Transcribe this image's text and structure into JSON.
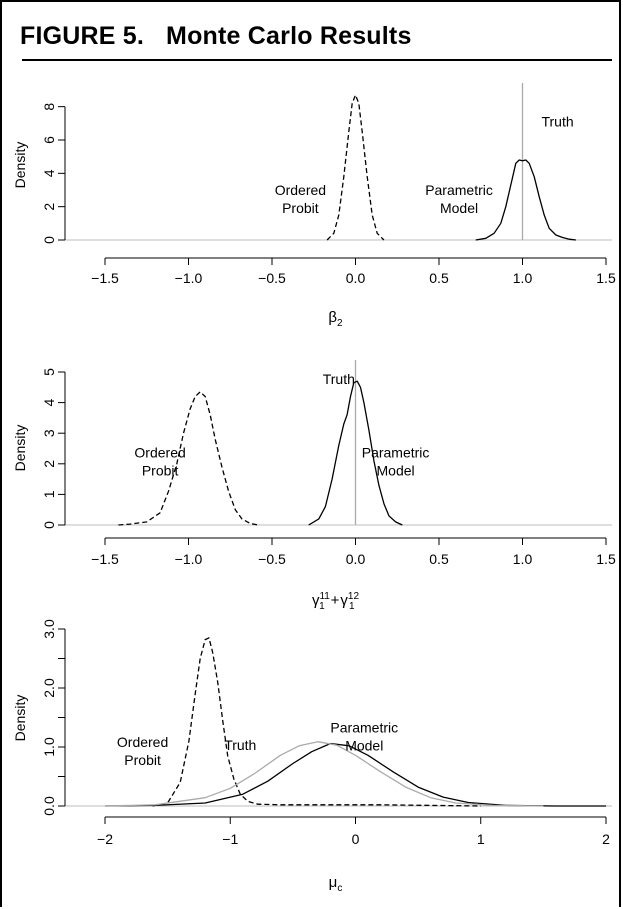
{
  "figure": {
    "label": "FIGURE 5.",
    "title": "Monte Carlo Results"
  },
  "chart_data": [
    {
      "type": "line",
      "xlabel": "β2",
      "xlabel_main": "β",
      "xlabel_sub": "2",
      "ylabel": "Density",
      "xlim": [
        -1.5,
        1.5
      ],
      "ylim": [
        0,
        8.7
      ],
      "xticks": [
        -1.5,
        -1.0,
        -0.5,
        0.0,
        0.5,
        1.0,
        1.5
      ],
      "xtick_labels": [
        "−1.5",
        "−1.0",
        "−0.5",
        "0.0",
        "0.5",
        "1.0",
        "1.5"
      ],
      "yticks": [
        0,
        2,
        4,
        6,
        8
      ],
      "ytick_labels": [
        "0",
        "2",
        "4",
        "6",
        "8"
      ],
      "truth_value": 1.0,
      "series": [
        {
          "style": "dashed",
          "color": "#000000",
          "x": [
            -0.17,
            -0.13,
            -0.1,
            -0.07,
            -0.04,
            -0.02,
            0.0,
            0.02,
            0.04,
            0.07,
            0.1,
            0.13,
            0.17
          ],
          "y": [
            0.0,
            0.4,
            1.5,
            3.8,
            6.5,
            8.2,
            8.7,
            8.2,
            6.5,
            3.8,
            1.5,
            0.4,
            0.0
          ]
        },
        {
          "style": "solid",
          "color": "#000000",
          "x": [
            0.72,
            0.78,
            0.83,
            0.87,
            0.9,
            0.93,
            0.96,
            0.98,
            1.0,
            1.02,
            1.04,
            1.07,
            1.1,
            1.13,
            1.16,
            1.2,
            1.24,
            1.28,
            1.32
          ],
          "y": [
            0.0,
            0.1,
            0.4,
            1.0,
            2.0,
            3.3,
            4.6,
            4.8,
            4.75,
            4.8,
            4.6,
            3.8,
            2.6,
            1.5,
            0.7,
            0.3,
            0.15,
            0.05,
            0.0
          ]
        }
      ],
      "annotations": [
        {
          "lines": [
            "Ordered",
            "Probit"
          ],
          "x": -0.33,
          "y": 2.7
        },
        {
          "lines": [
            "Parametric",
            "Model"
          ],
          "x": 0.62,
          "y": 2.7
        },
        {
          "lines": [
            "Truth"
          ],
          "x": 1.21,
          "y": 6.8
        }
      ]
    },
    {
      "type": "line",
      "xlabel": "γ1^11 + γ1^12",
      "xlabel_main": "γ",
      "xlabel_sub": "1",
      "xlabel_sup1": "11",
      "xlabel_plus": "+",
      "xlabel_sup2": "12",
      "ylabel": "Density",
      "xlim": [
        -1.5,
        1.5
      ],
      "ylim": [
        0,
        5
      ],
      "xticks": [
        -1.5,
        -1.0,
        -0.5,
        0.0,
        0.5,
        1.0,
        1.5
      ],
      "xtick_labels": [
        "−1.5",
        "−1.0",
        "−0.5",
        "0.0",
        "0.5",
        "1.0",
        "1.5"
      ],
      "yticks": [
        0,
        1,
        2,
        3,
        4,
        5
      ],
      "ytick_labels": [
        "0",
        "1",
        "2",
        "3",
        "4",
        "5"
      ],
      "truth_value": 0.0,
      "series": [
        {
          "style": "dashed",
          "color": "#000000",
          "x": [
            -1.42,
            -1.35,
            -1.25,
            -1.17,
            -1.12,
            -1.07,
            -1.03,
            -0.99,
            -0.96,
            -0.93,
            -0.9,
            -0.87,
            -0.84,
            -0.8,
            -0.76,
            -0.72,
            -0.68,
            -0.63,
            -0.58
          ],
          "y": [
            0.0,
            0.03,
            0.1,
            0.4,
            1.1,
            2.0,
            3.0,
            3.8,
            4.2,
            4.35,
            4.2,
            3.6,
            2.8,
            1.9,
            1.1,
            0.5,
            0.2,
            0.05,
            0.0
          ]
        },
        {
          "style": "solid",
          "color": "#000000",
          "x": [
            -0.28,
            -0.22,
            -0.18,
            -0.14,
            -0.1,
            -0.07,
            -0.05,
            -0.03,
            -0.01,
            0.01,
            0.03,
            0.05,
            0.08,
            0.11,
            0.14,
            0.17,
            0.2,
            0.24,
            0.28
          ],
          "y": [
            0.0,
            0.2,
            0.6,
            1.5,
            2.6,
            3.3,
            3.6,
            4.2,
            4.65,
            4.7,
            4.5,
            4.0,
            3.1,
            2.1,
            1.3,
            0.7,
            0.3,
            0.1,
            0.0
          ]
        }
      ],
      "annotations": [
        {
          "lines": [
            "Ordered",
            "Probit"
          ],
          "x": -1.17,
          "y": 2.2
        },
        {
          "lines": [
            "Parametric",
            "Model"
          ],
          "x": 0.24,
          "y": 2.2
        },
        {
          "lines": [
            "Truth"
          ],
          "x": -0.1,
          "y": 4.6
        }
      ]
    },
    {
      "type": "line",
      "xlabel": "μc",
      "xlabel_main": "μ",
      "xlabel_sub": "c",
      "ylabel": "Density",
      "xlim": [
        -2,
        2
      ],
      "ylim": [
        0,
        3.0
      ],
      "xticks": [
        -2,
        -1,
        0,
        1,
        2
      ],
      "xtick_labels": [
        "−2",
        "−1",
        "0",
        "1",
        "2"
      ],
      "yticks": [
        0.0,
        1.0,
        2.0,
        3.0
      ],
      "ytick_labels": [
        "0.0",
        "1.0",
        "2.0",
        "3.0"
      ],
      "yminor_ticks": [
        0.5,
        1.5,
        2.5
      ],
      "truth_value": null,
      "series": [
        {
          "style": "dashed",
          "color": "#000000",
          "x": [
            -1.62,
            -1.5,
            -1.4,
            -1.33,
            -1.28,
            -1.24,
            -1.2,
            -1.17,
            -1.14,
            -1.1,
            -1.06,
            -1.02,
            -0.97,
            -0.92,
            -0.86,
            -0.78,
            -0.6,
            -0.2,
            0.2,
            0.6,
            1.0
          ],
          "y": [
            0.0,
            0.05,
            0.4,
            1.1,
            1.9,
            2.5,
            2.82,
            2.85,
            2.6,
            2.1,
            1.45,
            0.85,
            0.45,
            0.2,
            0.08,
            0.03,
            0.02,
            0.02,
            0.02,
            0.01,
            0.0
          ]
        },
        {
          "style": "solid",
          "color": "#000000",
          "x": [
            -2.0,
            -1.6,
            -1.2,
            -0.9,
            -0.7,
            -0.5,
            -0.35,
            -0.2,
            -0.05,
            0.1,
            0.3,
            0.5,
            0.7,
            0.9,
            1.2,
            1.6,
            2.0
          ],
          "y": [
            0.0,
            0.01,
            0.05,
            0.2,
            0.42,
            0.72,
            0.92,
            1.06,
            1.02,
            0.86,
            0.58,
            0.32,
            0.15,
            0.06,
            0.01,
            0.0,
            0.0
          ]
        },
        {
          "style": "solid",
          "color": "#aaaaaa",
          "x": [
            -2.0,
            -1.6,
            -1.2,
            -1.0,
            -0.8,
            -0.6,
            -0.45,
            -0.3,
            -0.15,
            0.0,
            0.2,
            0.4,
            0.6,
            0.8,
            1.1,
            1.5
          ],
          "y": [
            0.0,
            0.02,
            0.14,
            0.3,
            0.56,
            0.86,
            1.02,
            1.09,
            1.03,
            0.86,
            0.58,
            0.32,
            0.14,
            0.05,
            0.01,
            0.0
          ]
        }
      ],
      "annotations": [
        {
          "lines": [
            "Ordered",
            "Probit"
          ],
          "x": -1.7,
          "y": 1.0
        },
        {
          "lines": [
            "Truth"
          ],
          "x": -0.92,
          "y": 0.95
        },
        {
          "lines": [
            "Parametric",
            "Model"
          ],
          "x": 0.07,
          "y": 1.25
        }
      ]
    }
  ]
}
